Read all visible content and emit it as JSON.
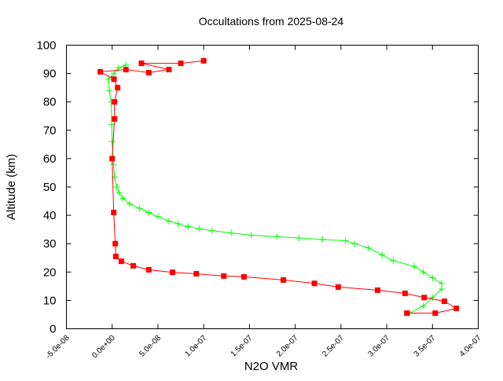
{
  "chart_data": {
    "type": "scatter",
    "title": "Occultations from 2025-08-24",
    "xlabel": "N2O VMR",
    "ylabel": "Altitude (km)",
    "xlim": [
      -5e-08,
      4e-07
    ],
    "ylim": [
      0,
      100
    ],
    "x_ticks": [
      -5e-08,
      0,
      5e-08,
      1e-07,
      1.5e-07,
      2e-07,
      2.5e-07,
      3e-07,
      3.5e-07,
      4e-07
    ],
    "x_tick_labels": [
      "-5.0e-08",
      "0.0e+00",
      "5.0e-08",
      "1.0e-07",
      "1.5e-07",
      "2.0e-07",
      "2.5e-07",
      "3.0e-07",
      "3.5e-07",
      "4.0e-07"
    ],
    "y_ticks": [
      0,
      10,
      20,
      30,
      40,
      50,
      60,
      70,
      80,
      90,
      100
    ],
    "y_tick_labels": [
      "0",
      "10",
      "20",
      "30",
      "40",
      "50",
      "60",
      "70",
      "80",
      "90",
      "100"
    ],
    "grid": false,
    "series": [
      {
        "marker": "cross",
        "color": "#00ff00",
        "points": [
          [
            3.25e-07,
            5.5
          ],
          [
            3.4e-07,
            8
          ],
          [
            3.5e-07,
            11
          ],
          [
            3.6e-07,
            14
          ],
          [
            3.6e-07,
            16
          ],
          [
            3.5e-07,
            18
          ],
          [
            3.4e-07,
            20
          ],
          [
            3.3e-07,
            22
          ],
          [
            3.07e-07,
            24
          ],
          [
            2.95e-07,
            26
          ],
          [
            2.8e-07,
            28.5
          ],
          [
            2.65e-07,
            30
          ],
          [
            2.55e-07,
            31
          ],
          [
            2.3e-07,
            31.5
          ],
          [
            2.04e-07,
            32
          ],
          [
            1.8e-07,
            32.5
          ],
          [
            1.52e-07,
            33
          ],
          [
            1.3e-07,
            33.8
          ],
          [
            1.09e-07,
            34.6
          ],
          [
            9.5e-08,
            35.3
          ],
          [
            8.3e-08,
            36
          ],
          [
            7.2e-08,
            37
          ],
          [
            6.2e-08,
            38
          ],
          [
            5e-08,
            39.5
          ],
          [
            4e-08,
            41
          ],
          [
            3e-08,
            42.5
          ],
          [
            1.9e-08,
            44
          ],
          [
            1.2e-08,
            46
          ],
          [
            7.7e-09,
            48
          ],
          [
            5e-09,
            50
          ],
          [
            2.6e-09,
            53.5
          ],
          [
            1.5e-09,
            58
          ],
          [
            0,
            66
          ],
          [
            -5e-10,
            72
          ],
          [
            -1e-09,
            80
          ],
          [
            -3e-09,
            84
          ],
          [
            -4e-09,
            88
          ],
          [
            2e-09,
            90
          ],
          [
            7e-09,
            92
          ],
          [
            1.5e-08,
            93
          ]
        ]
      },
      {
        "marker": "square",
        "color": "#ff0000",
        "points": [
          [
            3.22e-07,
            5.5
          ],
          [
            3.53e-07,
            5.5
          ],
          [
            3.76e-07,
            7.2
          ],
          [
            3.63e-07,
            9.7
          ],
          [
            3.41e-07,
            11
          ],
          [
            3.2e-07,
            12.5
          ],
          [
            2.9e-07,
            13.6
          ],
          [
            2.47e-07,
            14.7
          ],
          [
            2.21e-07,
            16
          ],
          [
            1.87e-07,
            17.2
          ],
          [
            1.44e-07,
            18.3
          ],
          [
            1.22e-07,
            18.6
          ],
          [
            9.2e-08,
            19.4
          ],
          [
            6.6e-08,
            19.9
          ],
          [
            4e-08,
            20.8
          ],
          [
            2.3e-08,
            22.2
          ],
          [
            1e-08,
            23.8
          ],
          [
            4e-09,
            25.5
          ],
          [
            3.4e-09,
            30
          ],
          [
            1.7e-09,
            41
          ],
          [
            0,
            60
          ],
          [
            2.6e-09,
            74
          ],
          [
            2.6e-09,
            80
          ],
          [
            6e-09,
            85
          ],
          [
            2e-09,
            88
          ],
          [
            -1.3e-08,
            90.6
          ],
          [
            1.5e-08,
            91.4
          ],
          [
            4e-08,
            90.3
          ],
          [
            6.2e-08,
            91.4
          ],
          [
            3.2e-08,
            93.6
          ],
          [
            7.5e-08,
            93.6
          ],
          [
            1e-07,
            94.5
          ]
        ]
      }
    ]
  }
}
